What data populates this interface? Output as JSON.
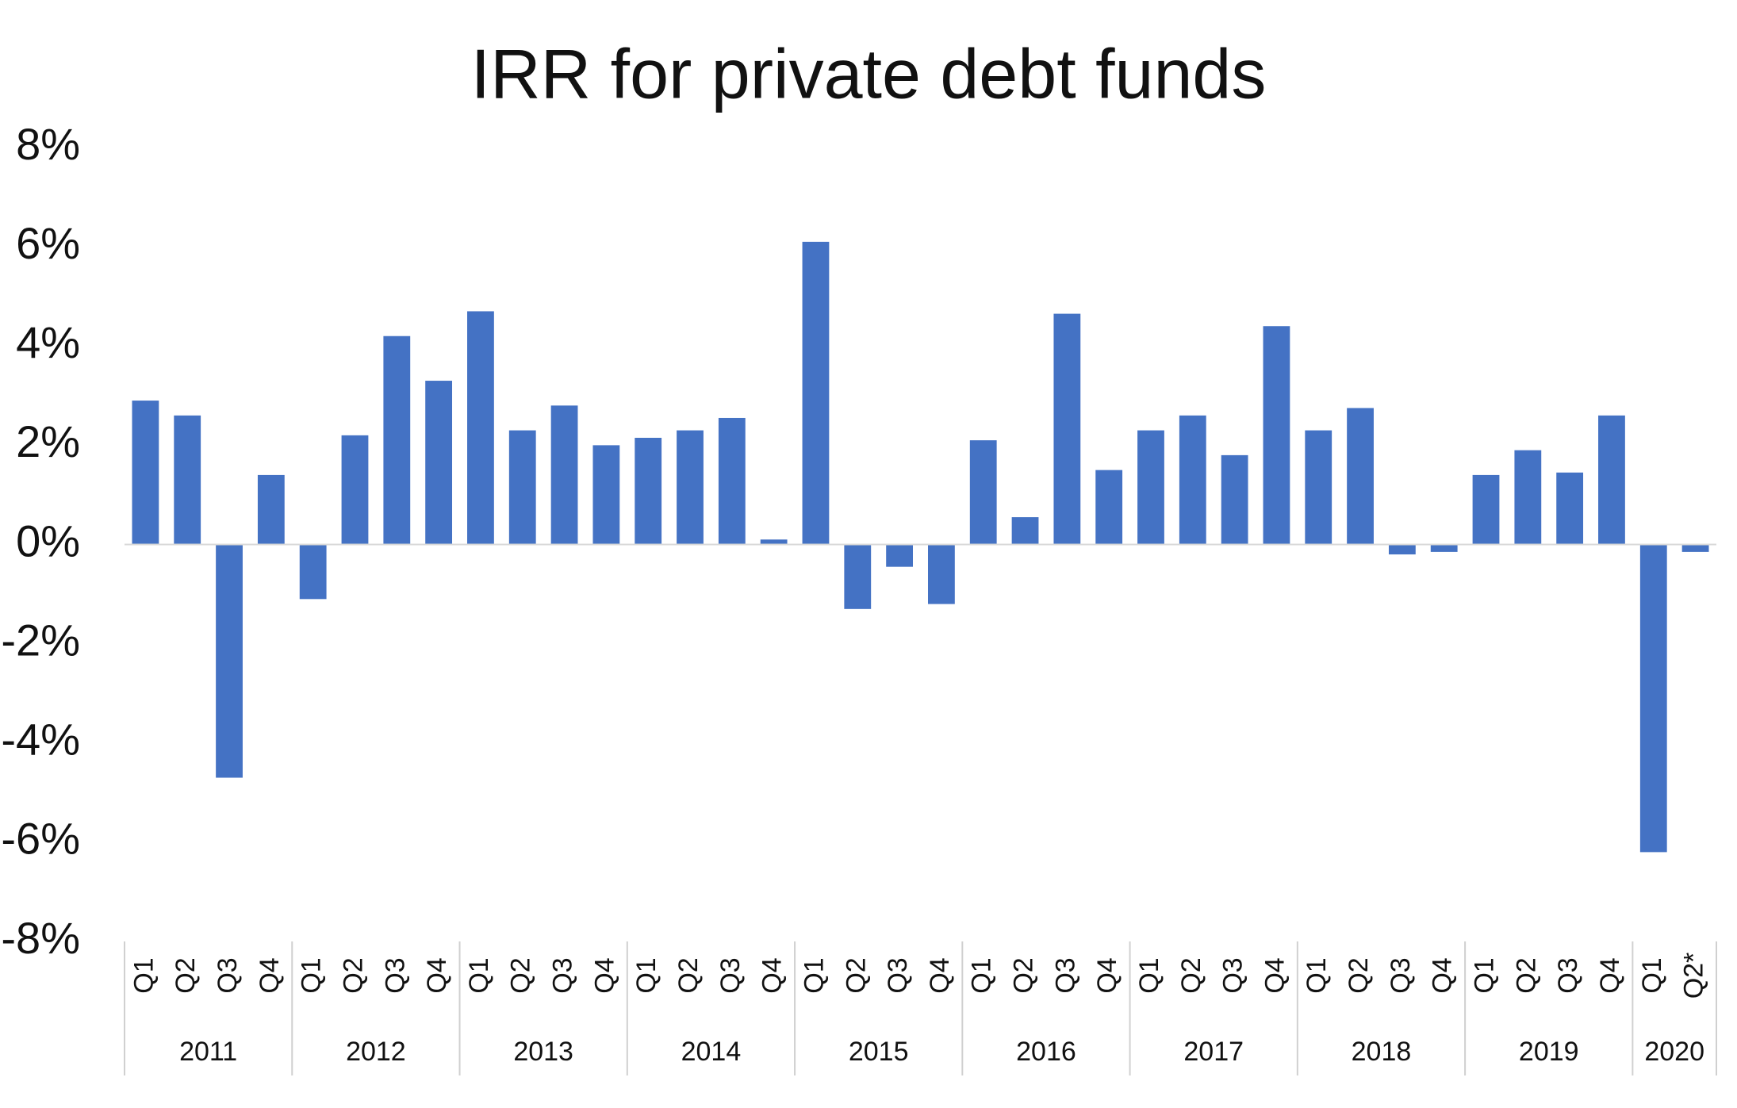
{
  "chart_data": {
    "type": "bar",
    "title": "IRR for private debt funds",
    "groups": [
      {
        "name": "2011",
        "categories": [
          "Q1",
          "Q2",
          "Q3",
          "Q4"
        ]
      },
      {
        "name": "2012",
        "categories": [
          "Q1",
          "Q2",
          "Q3",
          "Q4"
        ]
      },
      {
        "name": "2013",
        "categories": [
          "Q1",
          "Q2",
          "Q3",
          "Q4"
        ]
      },
      {
        "name": "2014",
        "categories": [
          "Q1",
          "Q2",
          "Q3",
          "Q4"
        ]
      },
      {
        "name": "2015",
        "categories": [
          "Q1",
          "Q2",
          "Q3",
          "Q4"
        ]
      },
      {
        "name": "2016",
        "categories": [
          "Q1",
          "Q2",
          "Q3",
          "Q4"
        ]
      },
      {
        "name": "2017",
        "categories": [
          "Q1",
          "Q2",
          "Q3",
          "Q4"
        ]
      },
      {
        "name": "2018",
        "categories": [
          "Q1",
          "Q2",
          "Q3",
          "Q4"
        ]
      },
      {
        "name": "2019",
        "categories": [
          "Q1",
          "Q2",
          "Q3",
          "Q4"
        ]
      },
      {
        "name": "2020",
        "categories": [
          "Q1",
          "Q2*"
        ]
      }
    ],
    "values": [
      2.9,
      2.6,
      -4.7,
      1.4,
      -1.1,
      2.2,
      4.2,
      3.3,
      4.7,
      2.3,
      2.8,
      2.0,
      2.15,
      2.3,
      2.55,
      0.1,
      6.1,
      -1.3,
      -0.45,
      -1.2,
      2.1,
      0.55,
      4.65,
      1.5,
      2.3,
      2.6,
      1.8,
      4.4,
      2.3,
      2.75,
      -0.2,
      -0.15,
      1.4,
      1.9,
      1.45,
      2.6,
      -6.2,
      -0.15
    ],
    "color": "#4472c4",
    "ylim": [
      -8,
      8
    ],
    "yticks": [
      {
        "value": -8,
        "label": "-8%"
      },
      {
        "value": -6,
        "label": "-6%"
      },
      {
        "value": -4,
        "label": "-4%"
      },
      {
        "value": -2,
        "label": "-2%"
      },
      {
        "value": 0,
        "label": "0%"
      },
      {
        "value": 2,
        "label": "2%"
      },
      {
        "value": 4,
        "label": "4%"
      },
      {
        "value": 6,
        "label": "6%"
      },
      {
        "value": 8,
        "label": "8%"
      }
    ],
    "grid": false
  }
}
